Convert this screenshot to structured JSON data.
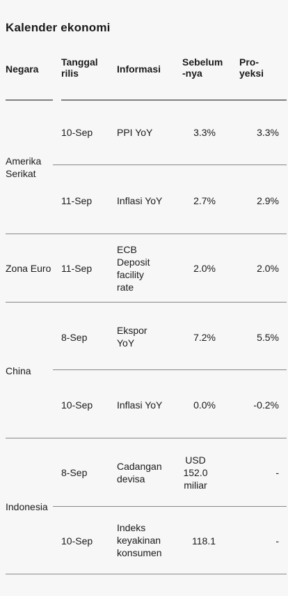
{
  "title": "Kalender ekonomi",
  "headers": {
    "negara": "Negara",
    "tanggal": "Tanggal\nrilis",
    "informasi": "Informasi",
    "sebelumnya": "Sebelum\n-nya",
    "proyeksi": "Pro-\nyeksi"
  },
  "rows": [
    {
      "country": "Amerika\nSerikat",
      "date": "10-Sep",
      "info": "PPI YoY",
      "prev": "3.3%",
      "proj": "3.3%"
    },
    {
      "country": "",
      "date": "11-Sep",
      "info": "Inflasi YoY",
      "prev": "2.7%",
      "proj": "2.9%"
    },
    {
      "country": "Zona Euro",
      "date": "11-Sep",
      "info": "ECB\nDeposit\nfacility\nrate",
      "prev": "2.0%",
      "proj": "2.0%"
    },
    {
      "country": "China",
      "date": "8-Sep",
      "info": "Ekspor\nYoY",
      "prev": "7.2%",
      "proj": "5.5%"
    },
    {
      "country": "",
      "date": "10-Sep",
      "info": "Inflasi YoY",
      "prev": "0.0%",
      "proj": "-0.2%"
    },
    {
      "country": "Indonesia",
      "date": "8-Sep",
      "info": "Cadangan\ndevisa",
      "prev": "USD\n152.0\nmiliar",
      "proj": "-"
    },
    {
      "country": "",
      "date": "10-Sep",
      "info": "Indeks\nkeyakinan\nkonsumen",
      "prev": "118.1",
      "proj": "-"
    }
  ]
}
